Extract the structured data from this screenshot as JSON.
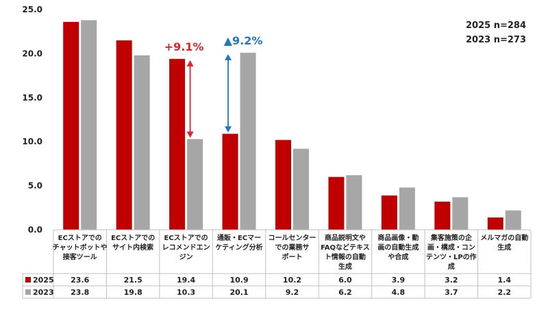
{
  "chart_data": {
    "type": "bar",
    "ylim": [
      0,
      25
    ],
    "yticks": [
      "0.0",
      "5.0",
      "10.0",
      "15.0",
      "20.0",
      "25.0"
    ],
    "categories": [
      [
        "ECストアでの",
        "チャットボットや",
        "接客ツール"
      ],
      [
        "ECストアでの",
        "サイト内検索"
      ],
      [
        "ECストアでの",
        "レコメンドエン",
        "ジン"
      ],
      [
        "通販・ECマー",
        "ケティング分析"
      ],
      [
        "コールセンター",
        "での業務サ",
        "ポート"
      ],
      [
        "商品説明文や",
        "FAQなどテキス",
        "ト情報の自動",
        "生成"
      ],
      [
        "商品画像・動",
        "画の自動生成",
        "や合成"
      ],
      [
        "集客施策の企",
        "画・構成・コン",
        "テンツ・LPの作",
        "成"
      ],
      [
        "メルマガの自動",
        "生成"
      ]
    ],
    "series": [
      {
        "name": "2025",
        "color": "#C00000",
        "values": [
          23.6,
          21.5,
          19.4,
          10.9,
          10.2,
          6.0,
          3.9,
          3.2,
          1.4
        ],
        "labels": [
          "23.6",
          "21.5",
          "19.4",
          "10.9",
          "10.2",
          "6.0",
          "3.9",
          "3.2",
          "1.4"
        ]
      },
      {
        "name": "2023",
        "color": "#A6A6A6",
        "values": [
          23.8,
          19.8,
          10.3,
          20.1,
          9.2,
          6.2,
          4.8,
          3.7,
          2.2
        ],
        "labels": [
          "23.8",
          "19.8",
          "10.3",
          "20.1",
          "9.2",
          "6.2",
          "4.8",
          "3.7",
          "2.2"
        ]
      }
    ],
    "sample_notes": [
      "2025 n=284",
      "2023 n=273"
    ],
    "annotations": [
      {
        "category_index": 2,
        "text": "+9.1%",
        "color": "#E8202A"
      },
      {
        "category_index": 3,
        "text": "▲9.2%",
        "color": "#1F77C8"
      }
    ],
    "legend_placement": "table-left",
    "grid": false
  }
}
